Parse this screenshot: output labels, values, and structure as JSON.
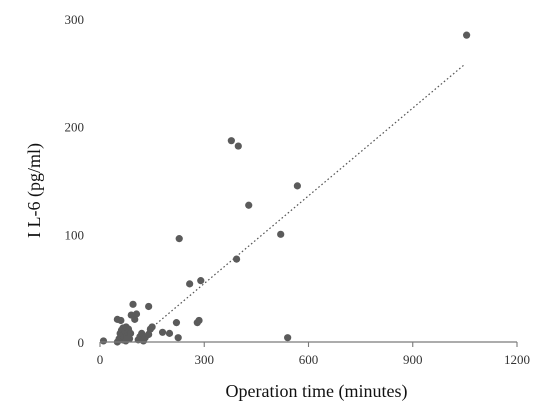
{
  "chart_data": {
    "type": "scatter",
    "title": "",
    "xlabel": "Operation time (minutes)",
    "ylabel": "I L-6 (pg/ml)",
    "xlim": [
      0,
      1200
    ],
    "ylim": [
      0,
      300
    ],
    "x_ticks": [
      0,
      300,
      600,
      900,
      1200
    ],
    "y_ticks": [
      0,
      100,
      200,
      300
    ],
    "grid": false,
    "legend": "none",
    "trendline": {
      "style": "dotted",
      "x": [
        100,
        1050
      ],
      "y": [
        0,
        258
      ]
    },
    "colors": {
      "points": "#5b5b5b",
      "axis": "#7a7a7a",
      "trendline": "#555555"
    },
    "points": [
      {
        "x": 10,
        "y": 1
      },
      {
        "x": 50,
        "y": 0
      },
      {
        "x": 55,
        "y": 3
      },
      {
        "x": 58,
        "y": 8
      },
      {
        "x": 60,
        "y": 5
      },
      {
        "x": 62,
        "y": 11
      },
      {
        "x": 65,
        "y": 2
      },
      {
        "x": 66,
        "y": 13
      },
      {
        "x": 68,
        "y": 7
      },
      {
        "x": 70,
        "y": 4
      },
      {
        "x": 72,
        "y": 10
      },
      {
        "x": 74,
        "y": 1
      },
      {
        "x": 75,
        "y": 14
      },
      {
        "x": 78,
        "y": 6
      },
      {
        "x": 80,
        "y": 9
      },
      {
        "x": 82,
        "y": 12
      },
      {
        "x": 85,
        "y": 3
      },
      {
        "x": 88,
        "y": 8
      },
      {
        "x": 90,
        "y": 25
      },
      {
        "x": 95,
        "y": 35
      },
      {
        "x": 100,
        "y": 21
      },
      {
        "x": 105,
        "y": 26
      },
      {
        "x": 110,
        "y": 2
      },
      {
        "x": 115,
        "y": 5
      },
      {
        "x": 120,
        "y": 8
      },
      {
        "x": 125,
        "y": 1
      },
      {
        "x": 130,
        "y": 4
      },
      {
        "x": 140,
        "y": 7
      },
      {
        "x": 140,
        "y": 33
      },
      {
        "x": 145,
        "y": 12
      },
      {
        "x": 150,
        "y": 14
      },
      {
        "x": 180,
        "y": 9
      },
      {
        "x": 200,
        "y": 8
      },
      {
        "x": 220,
        "y": 18
      },
      {
        "x": 225,
        "y": 4
      },
      {
        "x": 50,
        "y": 21
      },
      {
        "x": 60,
        "y": 20
      },
      {
        "x": 228,
        "y": 96
      },
      {
        "x": 258,
        "y": 54
      },
      {
        "x": 280,
        "y": 18
      },
      {
        "x": 285,
        "y": 20
      },
      {
        "x": 290,
        "y": 57
      },
      {
        "x": 378,
        "y": 187
      },
      {
        "x": 393,
        "y": 77
      },
      {
        "x": 398,
        "y": 182
      },
      {
        "x": 428,
        "y": 127
      },
      {
        "x": 520,
        "y": 100
      },
      {
        "x": 540,
        "y": 4
      },
      {
        "x": 568,
        "y": 145
      },
      {
        "x": 1055,
        "y": 285
      }
    ]
  }
}
